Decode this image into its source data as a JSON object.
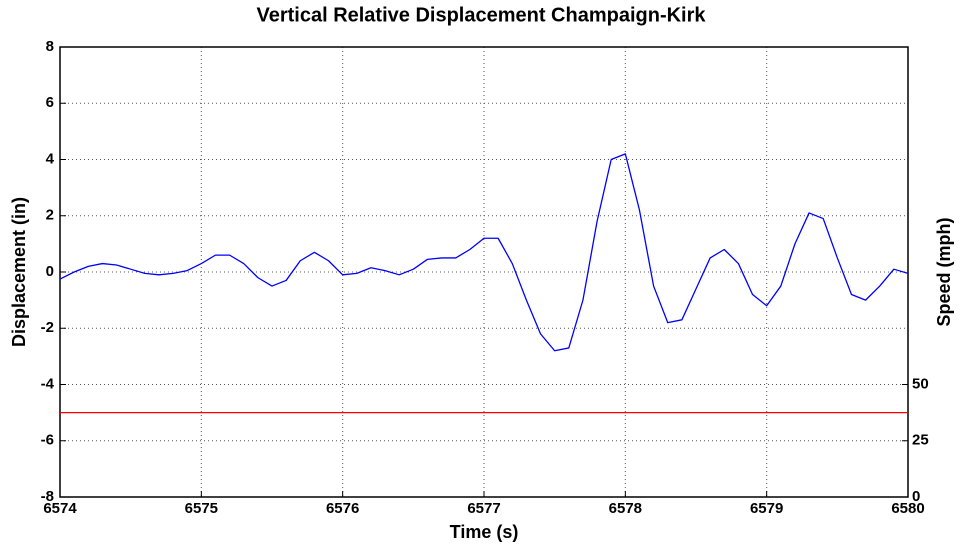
{
  "chart_data": {
    "type": "line",
    "title": "Vertical Relative Displacement Champaign-Kirk",
    "xlabel": "Time (s)",
    "ylabel": "Displacement (in)",
    "y2label": "Speed (mph)",
    "xlim": [
      6574,
      6580
    ],
    "xticks": [
      6574,
      6575,
      6576,
      6577,
      6578,
      6579,
      6580
    ],
    "ylim": [
      -8,
      8
    ],
    "yticks": [
      -8,
      -6,
      -4,
      -2,
      0,
      2,
      4,
      6,
      8
    ],
    "y2lim": [
      0,
      200
    ],
    "y2ticks": [
      0,
      25,
      50
    ],
    "grid": true,
    "series": [
      {
        "color": "#0000ff",
        "x": [
          6574.0,
          6574.1,
          6574.2,
          6574.3,
          6574.4,
          6574.5,
          6574.6,
          6574.7,
          6574.8,
          6574.9,
          6575.0,
          6575.1,
          6575.2,
          6575.3,
          6575.4,
          6575.5,
          6575.6,
          6575.7,
          6575.8,
          6575.9,
          6576.0,
          6576.1,
          6576.2,
          6576.3,
          6576.4,
          6576.5,
          6576.6,
          6576.7,
          6576.8,
          6576.9,
          6577.0,
          6577.1,
          6577.2,
          6577.3,
          6577.4,
          6577.5,
          6577.6,
          6577.7,
          6577.8,
          6577.9,
          6578.0,
          6578.1,
          6578.2,
          6578.3,
          6578.4,
          6578.5,
          6578.6,
          6578.7,
          6578.8,
          6578.9,
          6579.0,
          6579.1,
          6579.2,
          6579.3,
          6579.4,
          6579.5,
          6579.6,
          6579.7,
          6579.8,
          6579.9,
          6580.0
        ],
        "values": [
          -0.25,
          0.0,
          0.2,
          0.3,
          0.25,
          0.1,
          -0.05,
          -0.1,
          -0.05,
          0.05,
          0.3,
          0.6,
          0.6,
          0.3,
          -0.2,
          -0.5,
          -0.3,
          0.4,
          0.7,
          0.4,
          -0.1,
          -0.05,
          0.15,
          0.05,
          -0.1,
          0.1,
          0.45,
          0.5,
          0.5,
          0.8,
          1.2,
          1.2,
          0.3,
          -1.0,
          -2.2,
          -2.8,
          -2.7,
          -1.0,
          1.8,
          4.0,
          4.2,
          2.2,
          -0.5,
          -1.8,
          -1.7,
          -0.6,
          0.5,
          0.8,
          0.3,
          -0.8,
          -1.2,
          -0.5,
          1.0,
          2.1,
          1.9,
          0.5,
          -0.8,
          -1.0,
          -0.5,
          0.1,
          -0.05
        ]
      },
      {
        "color": "#ff0000",
        "axis": "y2",
        "x": [
          6574,
          6580
        ],
        "values": [
          37.5,
          37.5
        ]
      }
    ]
  }
}
